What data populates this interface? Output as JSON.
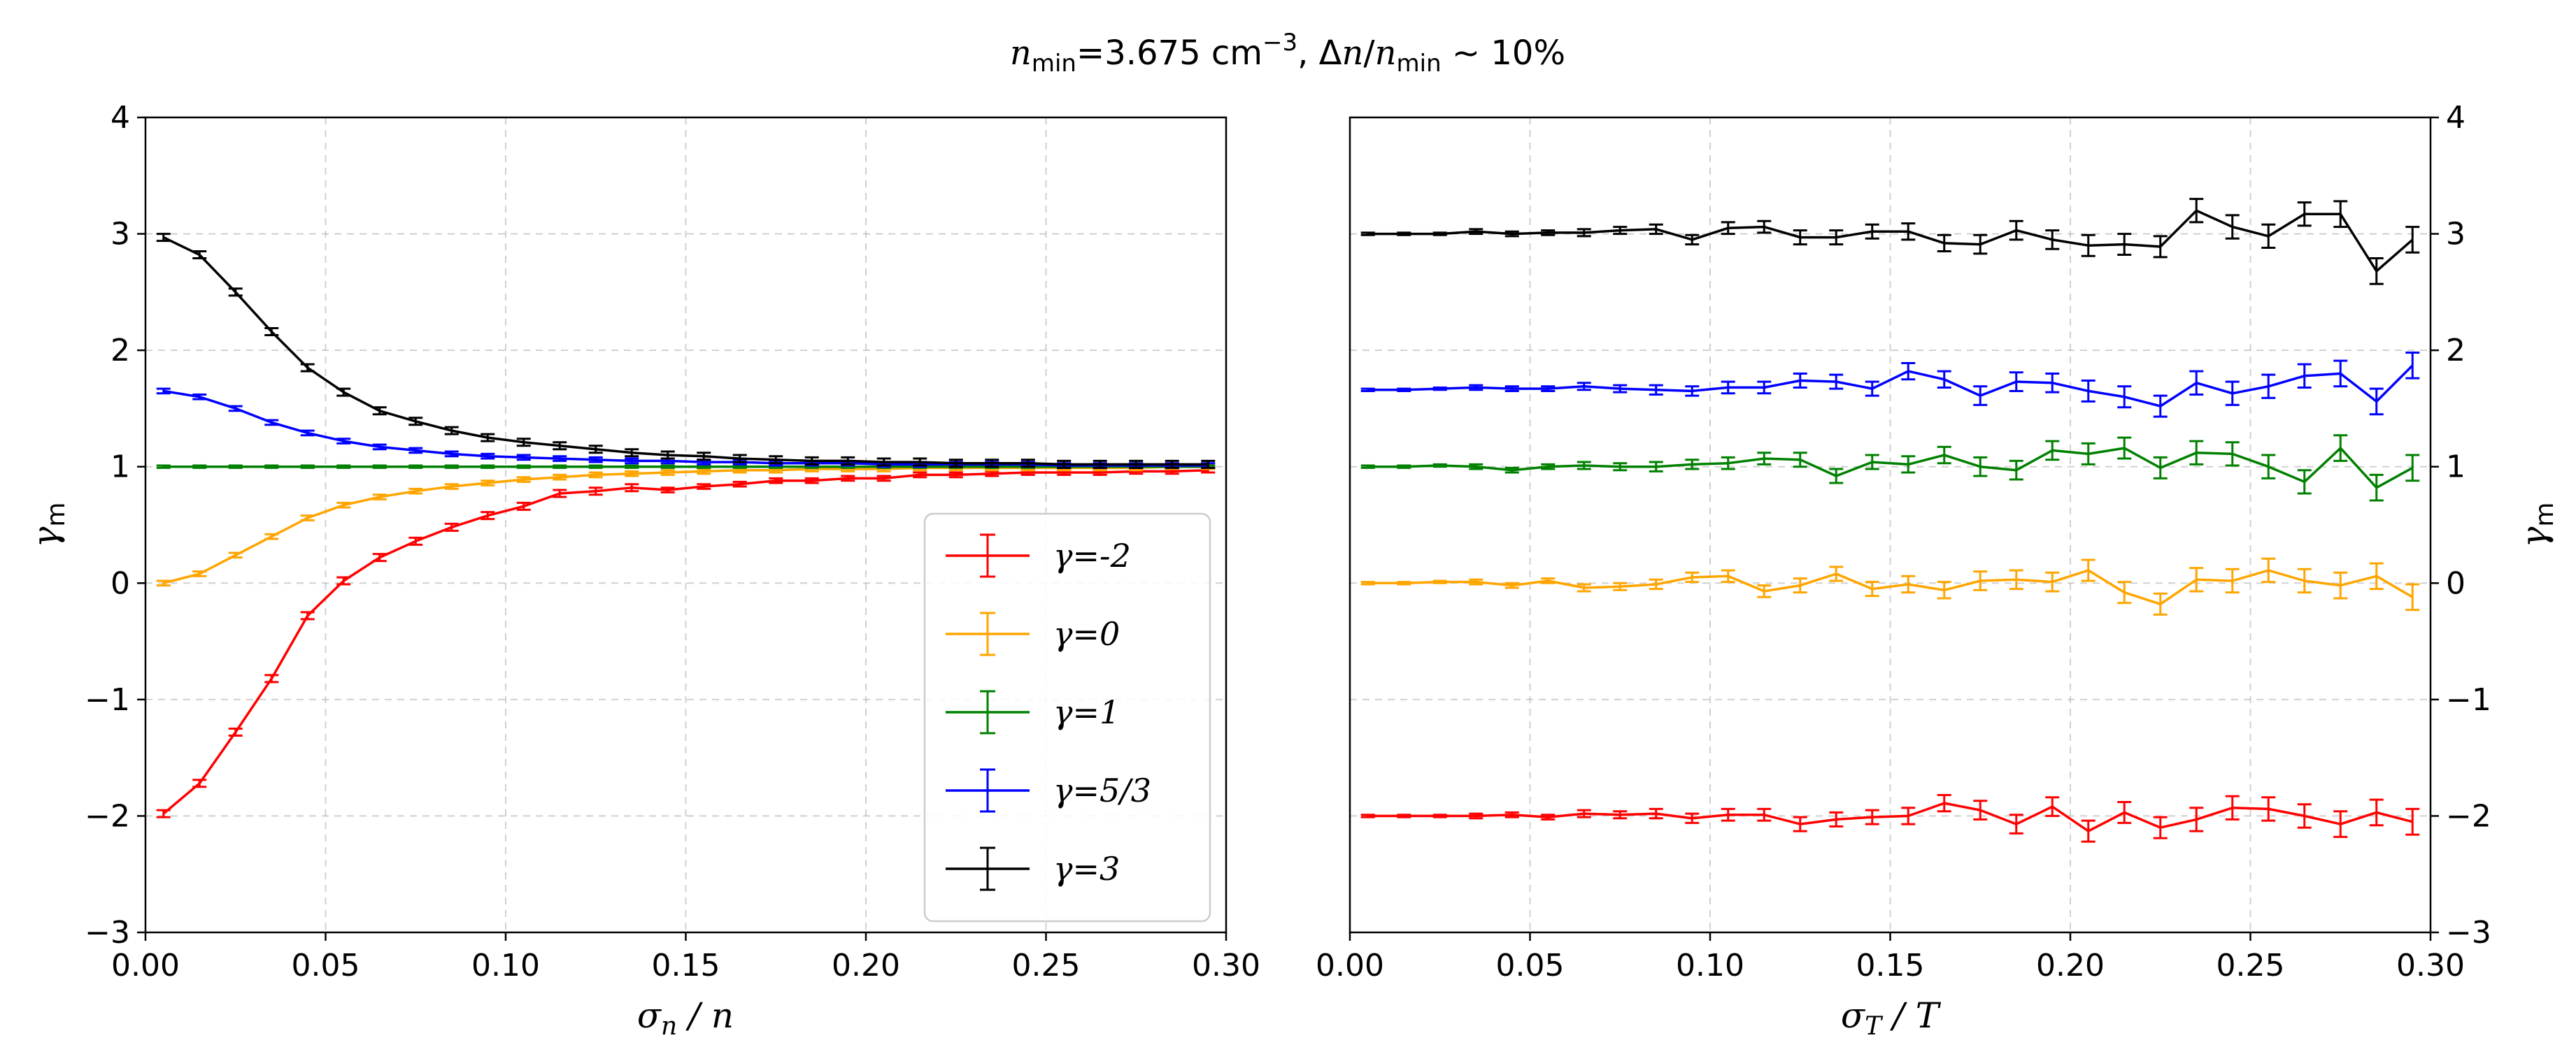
{
  "figure": {
    "title_parts": {
      "n": "n",
      "min_sub": "min",
      "eq_value": "=3.675 cm",
      "exp": "−3",
      "delta_text": ", Δ",
      "n2": "n",
      "slash": "/",
      "n3": "n",
      "min_sub2": "min",
      "tail": " ~ 10%"
    }
  },
  "chart_data": [
    {
      "type": "line",
      "name": "density-panel",
      "xlabel": "σn / n",
      "xlabel_parts": {
        "sigma": "σ",
        "sub": "n",
        "rest": " / n"
      },
      "ylabel": "γm",
      "ylabel_parts": {
        "gamma": "γ",
        "sub": "m"
      },
      "xlim": [
        0.0,
        0.3
      ],
      "ylim": [
        -3,
        4
      ],
      "xticks": [
        "0.00",
        "0.05",
        "0.10",
        "0.15",
        "0.20",
        "0.25",
        "0.30"
      ],
      "yticks": [
        "−3",
        "−2",
        "−1",
        "0",
        "1",
        "2",
        "3",
        "4"
      ],
      "grid": true,
      "legend_position": "lower-right",
      "x": [
        0.005,
        0.015,
        0.025,
        0.035,
        0.045,
        0.055,
        0.065,
        0.075,
        0.085,
        0.095,
        0.105,
        0.115,
        0.125,
        0.135,
        0.145,
        0.155,
        0.165,
        0.175,
        0.185,
        0.195,
        0.205,
        0.215,
        0.225,
        0.235,
        0.245,
        0.255,
        0.265,
        0.275,
        0.285,
        0.295
      ],
      "series": [
        {
          "name": "γ=-2",
          "color": "#ff0000",
          "values": [
            -1.98,
            -1.72,
            -1.28,
            -0.82,
            -0.28,
            0.02,
            0.22,
            0.36,
            0.48,
            0.58,
            0.66,
            0.77,
            0.79,
            0.82,
            0.8,
            0.83,
            0.85,
            0.88,
            0.88,
            0.9,
            0.9,
            0.93,
            0.93,
            0.94,
            0.95,
            0.95,
            0.95,
            0.96,
            0.96,
            0.97
          ],
          "errors": [
            0.03,
            0.03,
            0.03,
            0.03,
            0.03,
            0.03,
            0.03,
            0.03,
            0.03,
            0.03,
            0.03,
            0.03,
            0.03,
            0.03,
            0.02,
            0.02,
            0.02,
            0.02,
            0.02,
            0.02,
            0.02,
            0.02,
            0.02,
            0.02,
            0.02,
            0.02,
            0.02,
            0.02,
            0.02,
            0.02
          ]
        },
        {
          "name": "γ=0",
          "color": "#ffa500",
          "values": [
            0.0,
            0.08,
            0.24,
            0.4,
            0.56,
            0.67,
            0.74,
            0.79,
            0.83,
            0.86,
            0.89,
            0.91,
            0.93,
            0.94,
            0.95,
            0.96,
            0.97,
            0.97,
            0.98,
            0.98,
            0.98,
            0.99,
            0.99,
            0.99,
            0.99,
            0.99,
            0.99,
            0.99,
            1.0,
            1.0
          ],
          "errors": [
            0.02,
            0.02,
            0.02,
            0.02,
            0.02,
            0.02,
            0.02,
            0.02,
            0.02,
            0.02,
            0.02,
            0.02,
            0.02,
            0.02,
            0.02,
            0.02,
            0.02,
            0.02,
            0.02,
            0.02,
            0.02,
            0.02,
            0.02,
            0.02,
            0.02,
            0.02,
            0.02,
            0.02,
            0.02,
            0.02
          ]
        },
        {
          "name": "γ=1",
          "color": "#008000",
          "values": [
            1.0,
            1.0,
            1.0,
            1.0,
            1.0,
            1.0,
            1.0,
            1.0,
            1.0,
            1.0,
            1.0,
            1.0,
            1.0,
            1.0,
            1.0,
            1.0,
            1.0,
            1.0,
            1.0,
            1.0,
            1.0,
            1.0,
            1.0,
            1.0,
            1.0,
            1.0,
            1.0,
            1.0,
            1.0,
            1.0
          ],
          "errors": [
            0.01,
            0.01,
            0.01,
            0.01,
            0.01,
            0.01,
            0.01,
            0.01,
            0.01,
            0.01,
            0.01,
            0.01,
            0.01,
            0.01,
            0.01,
            0.01,
            0.01,
            0.01,
            0.01,
            0.01,
            0.01,
            0.01,
            0.01,
            0.01,
            0.01,
            0.01,
            0.01,
            0.01,
            0.01,
            0.01
          ]
        },
        {
          "name": "γ=5/3",
          "color": "#0000ff",
          "values": [
            1.65,
            1.6,
            1.5,
            1.38,
            1.29,
            1.22,
            1.17,
            1.14,
            1.11,
            1.09,
            1.08,
            1.07,
            1.06,
            1.05,
            1.05,
            1.04,
            1.04,
            1.03,
            1.03,
            1.03,
            1.02,
            1.02,
            1.02,
            1.02,
            1.02,
            1.01,
            1.01,
            1.01,
            1.01,
            1.01
          ],
          "errors": [
            0.02,
            0.02,
            0.02,
            0.02,
            0.02,
            0.02,
            0.02,
            0.02,
            0.02,
            0.02,
            0.02,
            0.02,
            0.02,
            0.02,
            0.02,
            0.02,
            0.02,
            0.02,
            0.02,
            0.02,
            0.02,
            0.02,
            0.02,
            0.02,
            0.02,
            0.02,
            0.02,
            0.02,
            0.02,
            0.02
          ]
        },
        {
          "name": "γ=3",
          "color": "#000000",
          "values": [
            2.97,
            2.82,
            2.5,
            2.16,
            1.85,
            1.64,
            1.48,
            1.39,
            1.31,
            1.25,
            1.21,
            1.18,
            1.15,
            1.12,
            1.1,
            1.09,
            1.07,
            1.06,
            1.05,
            1.05,
            1.04,
            1.04,
            1.03,
            1.03,
            1.03,
            1.02,
            1.02,
            1.02,
            1.02,
            1.02
          ],
          "errors": [
            0.03,
            0.03,
            0.03,
            0.03,
            0.03,
            0.03,
            0.03,
            0.03,
            0.03,
            0.03,
            0.03,
            0.03,
            0.03,
            0.03,
            0.03,
            0.03,
            0.03,
            0.03,
            0.03,
            0.03,
            0.03,
            0.03,
            0.03,
            0.03,
            0.03,
            0.03,
            0.03,
            0.03,
            0.03,
            0.03
          ]
        }
      ]
    },
    {
      "type": "line",
      "name": "temperature-panel",
      "xlabel": "σT / T",
      "xlabel_parts": {
        "sigma": "σ",
        "sub": "T",
        "rest": " / T"
      },
      "ylabel": "γm",
      "ylabel_parts": {
        "gamma": "γ",
        "sub": "m"
      },
      "xlim": [
        0.0,
        0.3
      ],
      "ylim": [
        -3,
        4
      ],
      "xticks": [
        "0.00",
        "0.05",
        "0.10",
        "0.15",
        "0.20",
        "0.25",
        "0.30"
      ],
      "yticks": [
        "−3",
        "−2",
        "−1",
        "0",
        "1",
        "2",
        "3",
        "4"
      ],
      "grid": true,
      "x": [
        0.005,
        0.015,
        0.025,
        0.035,
        0.045,
        0.055,
        0.065,
        0.075,
        0.085,
        0.095,
        0.105,
        0.115,
        0.125,
        0.135,
        0.145,
        0.155,
        0.165,
        0.175,
        0.185,
        0.195,
        0.205,
        0.215,
        0.225,
        0.235,
        0.245,
        0.255,
        0.265,
        0.275,
        0.285,
        0.295
      ],
      "series": [
        {
          "name": "γ=-2",
          "color": "#ff0000",
          "values": [
            -2.0,
            -2.0,
            -2.0,
            -2.0,
            -1.99,
            -2.01,
            -1.98,
            -1.99,
            -1.98,
            -2.02,
            -1.99,
            -1.99,
            -2.07,
            -2.03,
            -2.01,
            -2.0,
            -1.89,
            -1.95,
            -2.07,
            -1.92,
            -2.13,
            -1.97,
            -2.1,
            -2.03,
            -1.93,
            -1.94,
            -2.0,
            -2.07,
            -1.97,
            -2.05
          ],
          "errors": [
            0.01,
            0.01,
            0.01,
            0.02,
            0.02,
            0.02,
            0.03,
            0.03,
            0.04,
            0.04,
            0.05,
            0.05,
            0.06,
            0.06,
            0.06,
            0.07,
            0.07,
            0.08,
            0.08,
            0.08,
            0.09,
            0.09,
            0.09,
            0.1,
            0.1,
            0.1,
            0.1,
            0.11,
            0.11,
            0.11
          ]
        },
        {
          "name": "γ=0",
          "color": "#ffa500",
          "values": [
            0.0,
            0.0,
            0.01,
            0.01,
            -0.02,
            0.02,
            -0.04,
            -0.03,
            -0.01,
            0.05,
            0.06,
            -0.07,
            -0.02,
            0.08,
            -0.05,
            -0.01,
            -0.06,
            0.02,
            0.03,
            0.01,
            0.11,
            -0.08,
            -0.18,
            0.03,
            0.02,
            0.11,
            0.02,
            -0.02,
            0.06,
            -0.12
          ],
          "errors": [
            0.01,
            0.01,
            0.01,
            0.02,
            0.02,
            0.02,
            0.03,
            0.03,
            0.04,
            0.04,
            0.05,
            0.05,
            0.06,
            0.06,
            0.06,
            0.07,
            0.07,
            0.08,
            0.08,
            0.08,
            0.09,
            0.09,
            0.09,
            0.1,
            0.1,
            0.1,
            0.1,
            0.11,
            0.11,
            0.11
          ]
        },
        {
          "name": "γ=1",
          "color": "#008000",
          "values": [
            1.0,
            1.0,
            1.01,
            1.0,
            0.97,
            1.0,
            1.01,
            1.0,
            1.0,
            1.02,
            1.03,
            1.07,
            1.06,
            0.92,
            1.04,
            1.02,
            1.1,
            1.0,
            0.97,
            1.14,
            1.11,
            1.16,
            0.99,
            1.12,
            1.11,
            1.0,
            0.87,
            1.16,
            0.82,
            0.99
          ],
          "errors": [
            0.01,
            0.01,
            0.01,
            0.02,
            0.02,
            0.02,
            0.03,
            0.03,
            0.04,
            0.04,
            0.05,
            0.05,
            0.06,
            0.06,
            0.06,
            0.07,
            0.07,
            0.08,
            0.08,
            0.08,
            0.09,
            0.09,
            0.09,
            0.1,
            0.1,
            0.1,
            0.1,
            0.11,
            0.11,
            0.11
          ]
        },
        {
          "name": "γ=5/3",
          "color": "#0000ff",
          "values": [
            1.66,
            1.66,
            1.67,
            1.68,
            1.67,
            1.67,
            1.69,
            1.67,
            1.66,
            1.65,
            1.68,
            1.68,
            1.74,
            1.73,
            1.67,
            1.82,
            1.75,
            1.61,
            1.73,
            1.72,
            1.65,
            1.6,
            1.52,
            1.72,
            1.63,
            1.69,
            1.78,
            1.8,
            1.56,
            1.87
          ],
          "errors": [
            0.01,
            0.01,
            0.01,
            0.02,
            0.02,
            0.02,
            0.03,
            0.03,
            0.04,
            0.04,
            0.05,
            0.05,
            0.06,
            0.06,
            0.06,
            0.07,
            0.07,
            0.08,
            0.08,
            0.08,
            0.09,
            0.09,
            0.09,
            0.1,
            0.1,
            0.1,
            0.1,
            0.11,
            0.11,
            0.11
          ]
        },
        {
          "name": "γ=3",
          "color": "#000000",
          "values": [
            3.0,
            3.0,
            3.0,
            3.02,
            3.0,
            3.01,
            3.01,
            3.03,
            3.04,
            2.95,
            3.05,
            3.06,
            2.97,
            2.97,
            3.02,
            3.02,
            2.92,
            2.91,
            3.03,
            2.95,
            2.9,
            2.91,
            2.89,
            3.2,
            3.06,
            2.98,
            3.17,
            3.17,
            2.68,
            2.95
          ],
          "errors": [
            0.01,
            0.01,
            0.01,
            0.02,
            0.02,
            0.02,
            0.03,
            0.03,
            0.04,
            0.04,
            0.05,
            0.05,
            0.06,
            0.06,
            0.06,
            0.07,
            0.07,
            0.08,
            0.08,
            0.08,
            0.09,
            0.09,
            0.09,
            0.1,
            0.1,
            0.1,
            0.1,
            0.11,
            0.11,
            0.11
          ]
        }
      ]
    }
  ]
}
